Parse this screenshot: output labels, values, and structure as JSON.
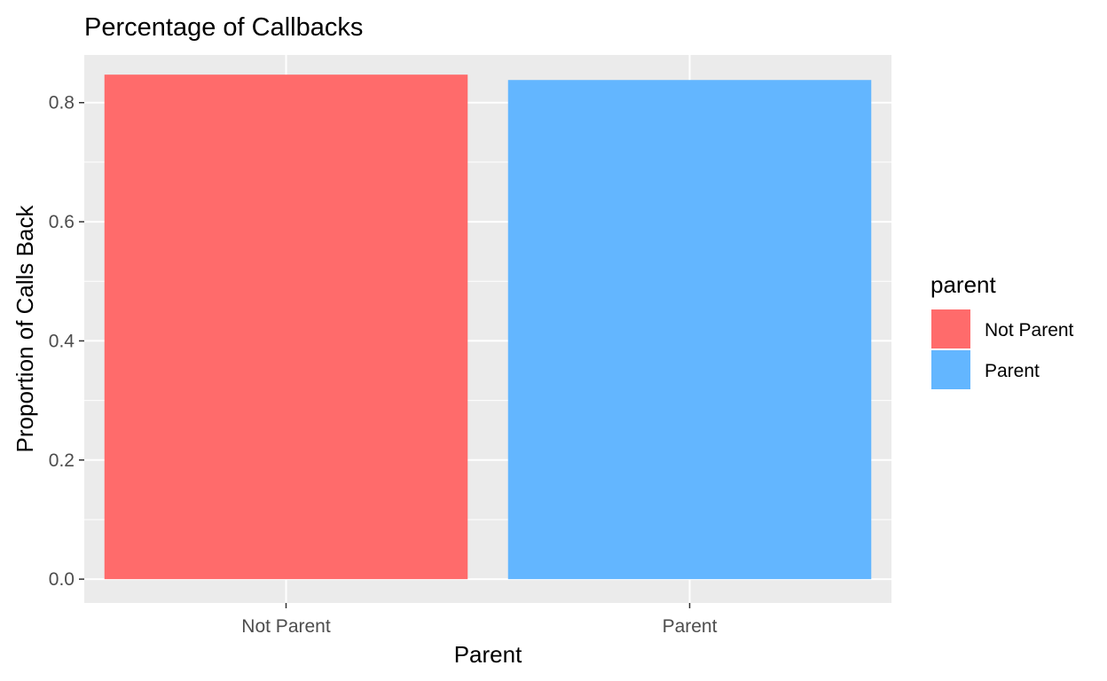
{
  "chart_data": {
    "type": "bar",
    "title": "Percentage of Callbacks",
    "xlabel": "Parent",
    "ylabel": "Proportion of Calls Back",
    "categories": [
      "Not Parent",
      "Parent"
    ],
    "values": [
      0.847,
      0.838
    ],
    "colors": [
      "#FF6B6B",
      "#63B6FF"
    ],
    "ylim": [
      -0.04,
      0.88
    ],
    "yticks": [
      0.0,
      0.2,
      0.4,
      0.6,
      0.8
    ],
    "ytick_labels": [
      "0.0",
      "0.2",
      "0.4",
      "0.6",
      "0.8"
    ],
    "grid": true,
    "panel_background": "#EBEBEB",
    "legend": {
      "title": "parent",
      "placement": "right",
      "entries": [
        "Not Parent",
        "Parent"
      ]
    }
  }
}
